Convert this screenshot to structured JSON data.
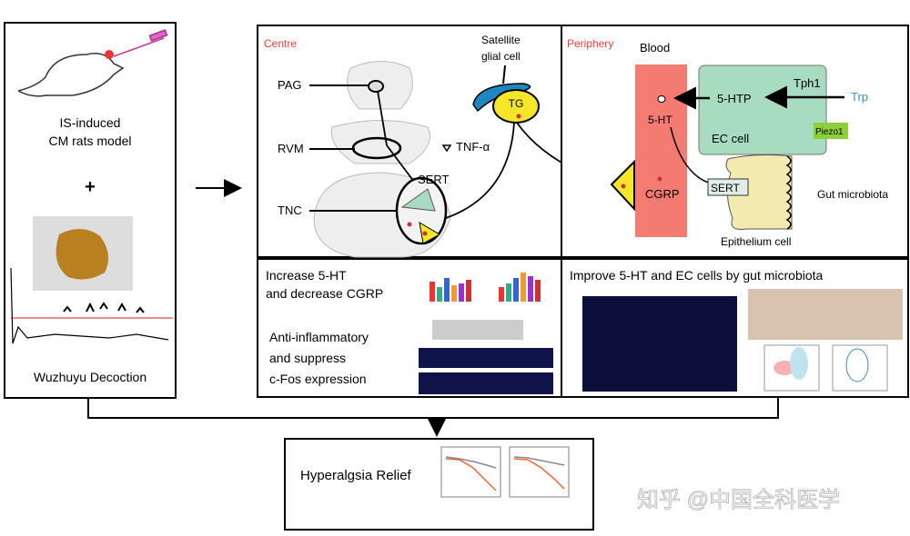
{
  "left_panel": {
    "model_label_1": "IS-induced",
    "model_label_2": "CM rats model",
    "plus": "+",
    "decoction_label": "Wuzhuyu Decoction"
  },
  "centre": {
    "title": "Centre",
    "pag": "PAG",
    "rvm": "RVM",
    "tnc": "TNC",
    "satellite_1": "Satellite",
    "satellite_2": "glial cell",
    "tg": "TG",
    "tnf": "TNF-α",
    "sert": "SERT"
  },
  "periphery": {
    "title": "Periphery",
    "blood": "Blood",
    "tph1": "Tph1",
    "htp": "5-HTP",
    "trp": "Trp",
    "ht": "5-HT",
    "ec_cell": "EC cell",
    "piezo1": "Piezo1",
    "cgrp": "CGRP",
    "sert": "SERT",
    "gut": "Gut microbiota",
    "epithelium": "Epithelium cell"
  },
  "results_left": {
    "line1": "Increase 5-HT",
    "line2": "and decrease CGRP",
    "line3": "Anti-inflammatory",
    "line4": "and suppress",
    "line5": "c-Fos expression"
  },
  "results_right": {
    "title": "Improve 5-HT and EC cells by gut microbiota"
  },
  "outcome": {
    "label": "Hyperalgsia Relief"
  },
  "watermark": "知乎 @中国全科医学",
  "colors": {
    "red_title": "#e8403a",
    "blood": "#f47b72",
    "ec_cell": "#a8dcc0",
    "epithelium": "#f3eab0",
    "tg": "#f5e62a",
    "glial": "#1f86c0",
    "piezo": "#8dcf3a",
    "trp": "#3a8fc0"
  }
}
